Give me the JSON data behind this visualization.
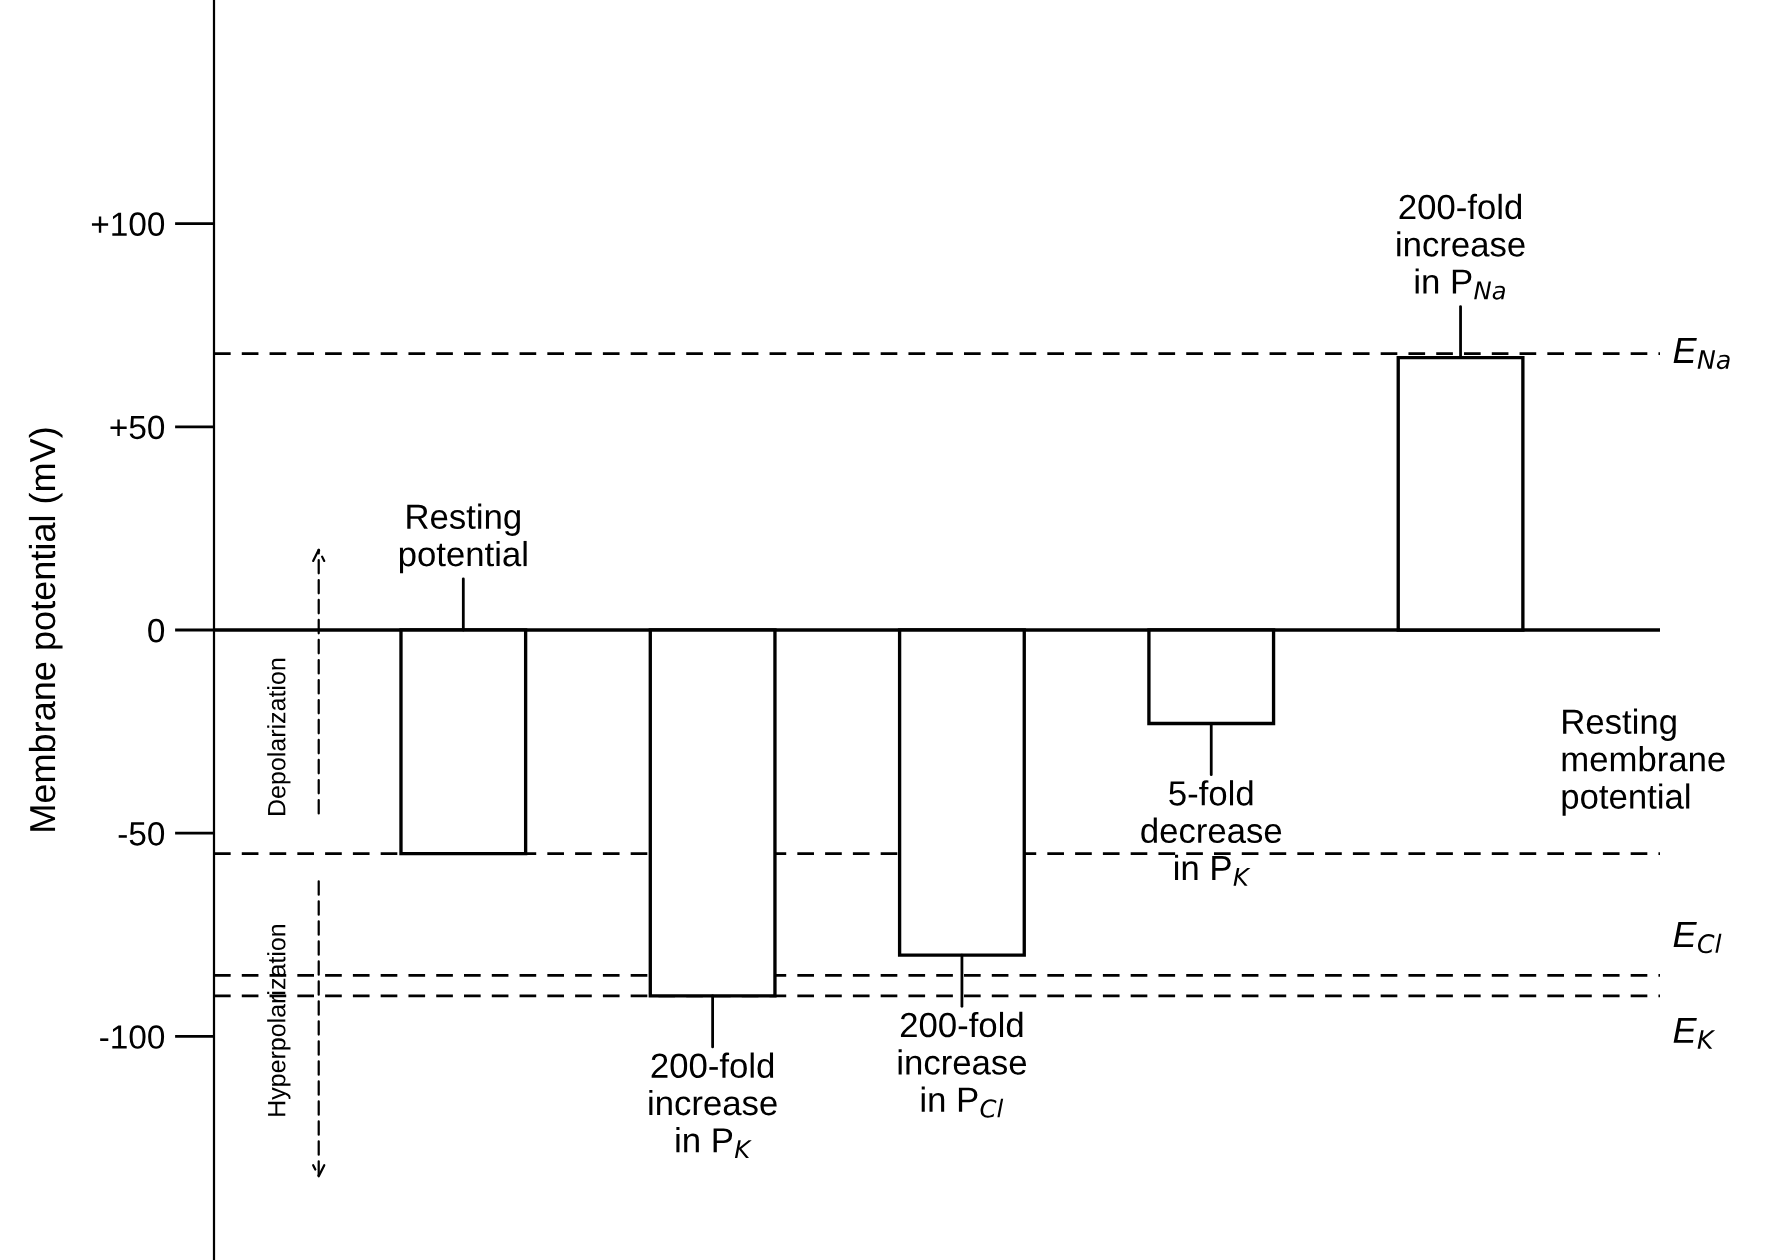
{
  "chart_data": {
    "type": "bar",
    "categories": [
      null,
      null,
      null,
      null,
      null
    ],
    "values": [
      -55,
      -90,
      -80,
      -23,
      67
    ],
    "color": "#ffffff",
    "ylabel": "Membrane potential (mV)",
    "ylim": [
      -155,
      155
    ],
    "yticks": [
      {
        "value": 100,
        "label": "+100"
      },
      {
        "value": 50,
        "label": "+50"
      },
      0,
      -50,
      -100
    ],
    "tick_labels": "y",
    "grid": false,
    "ref_lines": [
      {
        "axis": "y",
        "value": 0,
        "line_style": "solid"
      },
      {
        "axis": "y",
        "value": 68,
        "label": "E$_{Na}$",
        "line_style": "dashed"
      },
      {
        "axis": "y",
        "value": -55,
        "label": "Resting\nmembrane\npotential",
        "line_style": "dashed"
      },
      {
        "axis": "y",
        "value": -85,
        "label": "E$_{Cl}$",
        "line_style": "dashed"
      },
      {
        "axis": "y",
        "value": -90,
        "label": "E$_{K}$",
        "line_style": "dashed"
      }
    ],
    "annotations": [
      {
        "text": "Resting\npotential"
      },
      {
        "text": "200-fold\nincrease\nin P$_{K}$",
        "y": -90
      },
      {
        "text": "200-fold\nincrease\nin P$_{Cl}$",
        "y": -80
      },
      {
        "text": "5-fold\ndecrease\nin P$_{K}$",
        "y": -23
      },
      {
        "text": "200-fold\nincrease\nin P$_{Na}$",
        "y": 67
      },
      "Depolarization",
      "Hyperpolarization"
    ]
  }
}
